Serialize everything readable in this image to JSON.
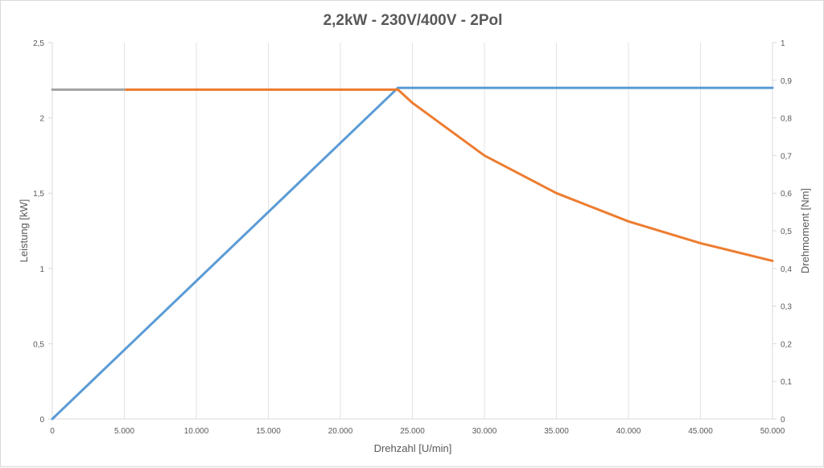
{
  "chart_data": {
    "type": "line",
    "title": "2,2kW - 230V/400V - 2Pol",
    "xlabel": "Drehzahl [U/min]",
    "ylabel": "Leistung [kW]",
    "y2label": "Drehmoment [Nm]",
    "xlim": [
      0,
      50000
    ],
    "ylim": [
      0,
      2.5
    ],
    "y2lim": [
      0,
      1
    ],
    "x_ticks": [
      0,
      5000,
      10000,
      15000,
      20000,
      25000,
      30000,
      35000,
      40000,
      45000,
      50000
    ],
    "x_tick_labels": [
      "0",
      "5.000",
      "10.000",
      "15.000",
      "20.000",
      "25.000",
      "30.000",
      "35.000",
      "40.000",
      "45.000",
      "50.000"
    ],
    "y_ticks": [
      0,
      0.5,
      1,
      1.5,
      2,
      2.5
    ],
    "y_tick_labels": [
      "0",
      "0,5",
      "1",
      "1,5",
      "2",
      "2,5"
    ],
    "y2_ticks": [
      0,
      0.1,
      0.2,
      0.3,
      0.4,
      0.5,
      0.6,
      0.7,
      0.8,
      0.9,
      1
    ],
    "y2_tick_labels": [
      "0",
      "0,1",
      "0,2",
      "0,3",
      "0,4",
      "0,5",
      "0,6",
      "0,7",
      "0,8",
      "0,9",
      "1"
    ],
    "grid": "vertical",
    "legend": "none",
    "series": [
      {
        "axis": "y",
        "color": "#5b9bd5",
        "x": [
          0,
          24000,
          50000
        ],
        "values": [
          0,
          2.2,
          2.2
        ]
      },
      {
        "axis": "y2",
        "color": "#ed7d31",
        "x": [
          5000,
          24000,
          25000,
          30000,
          35000,
          40000,
          45000,
          50000
        ],
        "values": [
          0.875,
          0.875,
          0.84,
          0.7,
          0.6,
          0.525,
          0.467,
          0.42
        ]
      },
      {
        "axis": "y2",
        "color": "#a5a5a5",
        "x": [
          0,
          5000
        ],
        "values": [
          0.875,
          0.875
        ]
      }
    ]
  }
}
